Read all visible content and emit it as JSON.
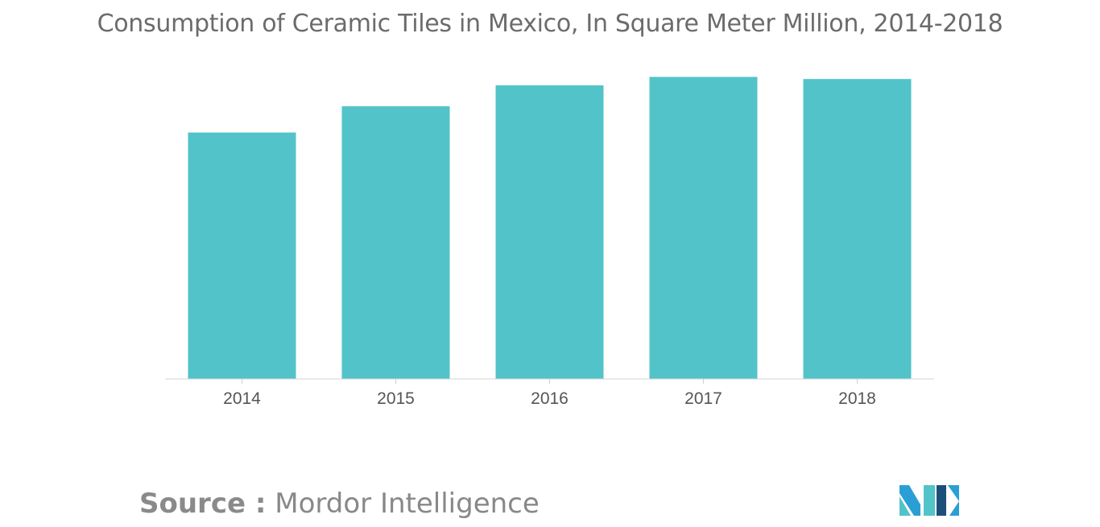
{
  "chart_data": {
    "type": "bar",
    "title": "Consumption of Ceramic Tiles in Mexico, In Square Meter Million, 2014-2018",
    "categories": [
      "2014",
      "2015",
      "2016",
      "2017",
      "2018"
    ],
    "values": [
      235,
      260,
      280,
      288,
      286
    ],
    "ylim": [
      0,
      300
    ],
    "grid": false,
    "legend": "none",
    "bar_color": "#52c3c9"
  },
  "source": {
    "label": "Source :",
    "name": "Mordor Intelligence"
  },
  "logo": {
    "icon": "mordor-intelligence-logo-icon",
    "colors": [
      "#2a9fd6",
      "#52c3c9",
      "#1b4f7a"
    ]
  }
}
